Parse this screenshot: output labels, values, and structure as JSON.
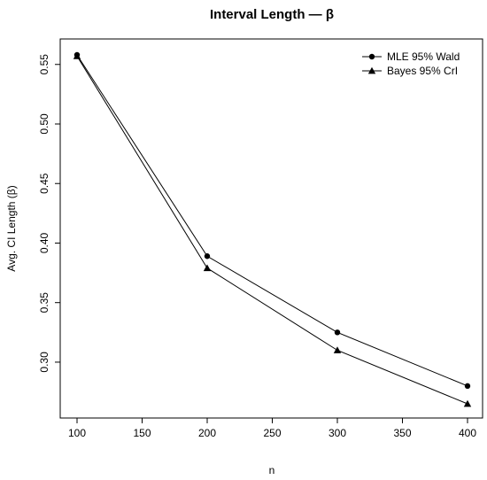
{
  "chart_data": {
    "type": "line",
    "title": "Interval Length — β",
    "xlabel": "n",
    "ylabel": "Avg. CI Length (β)",
    "x": [
      100,
      200,
      300,
      400
    ],
    "xlim": [
      100,
      400
    ],
    "ylim": [
      0.265,
      0.558
    ],
    "xticks": [
      100,
      150,
      200,
      250,
      300,
      350,
      400
    ],
    "yticks": [
      0.3,
      0.35,
      0.4,
      0.45,
      0.5,
      0.55
    ],
    "xtick_labels": [
      "100",
      "150",
      "200",
      "250",
      "300",
      "350",
      "400"
    ],
    "ytick_labels": [
      "0.30",
      "0.35",
      "0.40",
      "0.45",
      "0.50",
      "0.55"
    ],
    "grid": false,
    "legend_position": "top-right",
    "series": [
      {
        "name": "MLE 95% Wald",
        "marker": "circle",
        "values": [
          0.558,
          0.389,
          0.325,
          0.28
        ]
      },
      {
        "name": "Bayes 95% CrI",
        "marker": "triangle",
        "values": [
          0.557,
          0.379,
          0.31,
          0.265
        ]
      }
    ]
  }
}
